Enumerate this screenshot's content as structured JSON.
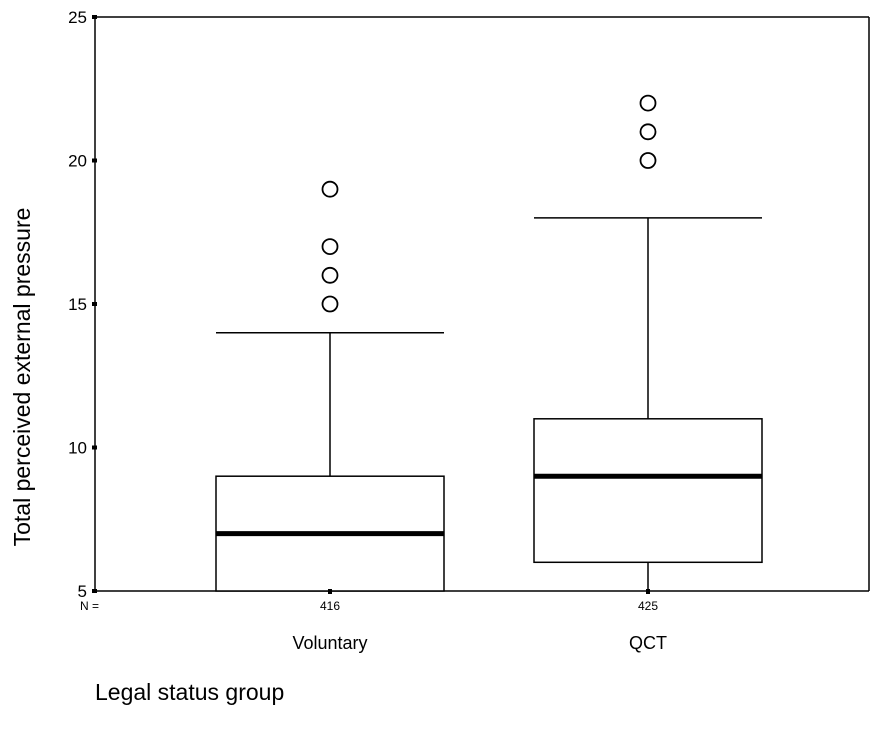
{
  "chart_data": {
    "type": "boxplot",
    "ylabel": "Total perceived external pressure",
    "xlabel": "Legal status group",
    "ylim": [
      5,
      25
    ],
    "yticks": [
      "5",
      "10",
      "15",
      "20",
      "25"
    ],
    "n_prefix": "N =",
    "groups": [
      {
        "category": "Voluntary",
        "n": "416",
        "lower_whisker": 5,
        "q1": 5,
        "median": 7,
        "q3": 9,
        "upper_whisker": 14,
        "outliers": [
          15,
          16,
          17,
          19
        ]
      },
      {
        "category": "QCT",
        "n": "425",
        "lower_whisker": 5,
        "q1": 6,
        "median": 9,
        "q3": 11,
        "upper_whisker": 18,
        "outliers": [
          20,
          21,
          22
        ]
      }
    ]
  }
}
